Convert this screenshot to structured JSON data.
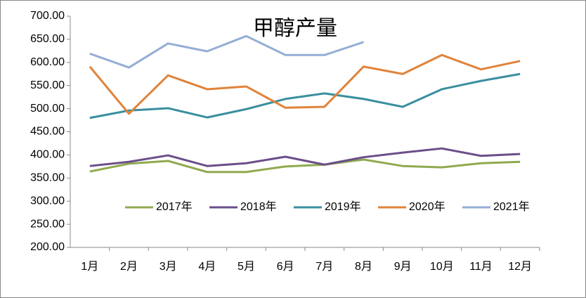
{
  "chart_data": {
    "type": "line",
    "title": "甲醇产量",
    "categories": [
      "1月",
      "2月",
      "3月",
      "4月",
      "5月",
      "6月",
      "7月",
      "8月",
      "9月",
      "10月",
      "11月",
      "12月"
    ],
    "series": [
      {
        "name": "2017年",
        "color": "#8faa4f",
        "values": [
          364,
          381,
          387,
          363,
          363,
          375,
          379,
          390,
          376,
          373,
          382,
          385
        ]
      },
      {
        "name": "2018年",
        "color": "#6b4e8a",
        "values": [
          376,
          385,
          399,
          376,
          382,
          396,
          379,
          395,
          405,
          414,
          398,
          402
        ]
      },
      {
        "name": "2019年",
        "color": "#3a8f9e",
        "values": [
          480,
          496,
          501,
          481,
          499,
          521,
          533,
          521,
          504,
          542,
          560,
          575
        ]
      },
      {
        "name": "2020年",
        "color": "#e0833a",
        "values": [
          591,
          489,
          572,
          542,
          548,
          502,
          504,
          591,
          575,
          616,
          585,
          603
        ]
      },
      {
        "name": "2021年",
        "color": "#94aed4",
        "values": [
          619,
          589,
          641,
          624,
          657,
          616,
          616,
          644,
          null,
          null,
          null,
          null
        ]
      }
    ],
    "ylim": [
      200,
      700
    ],
    "yticks": [
      {
        "value": 200,
        "label": "200.00"
      },
      {
        "value": 250,
        "label": "250.00"
      },
      {
        "value": 300,
        "label": "300.00"
      },
      {
        "value": 350,
        "label": "350.00"
      },
      {
        "value": 400,
        "label": "400.00"
      },
      {
        "value": 450,
        "label": "450.00"
      },
      {
        "value": 500,
        "label": "500.00"
      },
      {
        "value": 550,
        "label": "550.00"
      },
      {
        "value": 600,
        "label": "600.00"
      },
      {
        "value": 650,
        "label": "650.00"
      },
      {
        "value": 700,
        "label": "700.00"
      }
    ]
  }
}
